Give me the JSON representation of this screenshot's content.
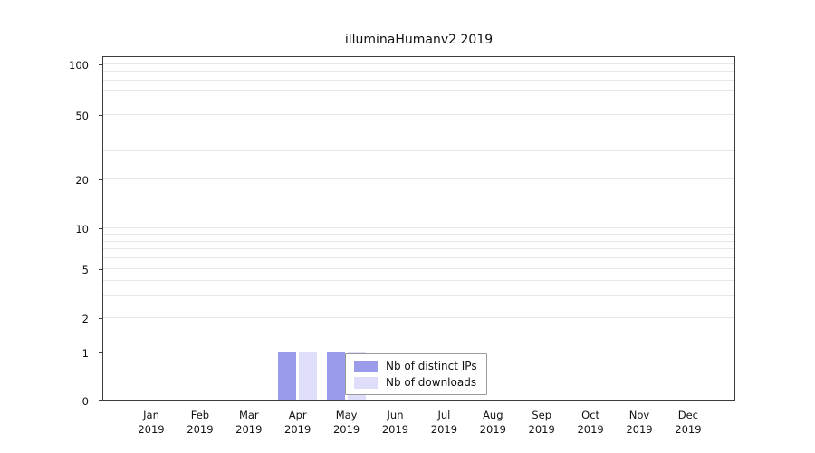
{
  "chart_data": {
    "type": "bar",
    "title": "illuminaHumanv2 2019",
    "categories": [
      "Jan 2019",
      "Feb 2019",
      "Mar 2019",
      "Apr 2019",
      "May 2019",
      "Jun 2019",
      "Jul 2019",
      "Aug 2019",
      "Sep 2019",
      "Oct 2019",
      "Nov 2019",
      "Dec 2019"
    ],
    "series": [
      {
        "name": "Nb of distinct IPs",
        "color": "#9b9bec",
        "values": [
          0,
          0,
          0,
          1,
          1,
          0,
          0,
          0,
          0,
          0,
          0,
          0
        ]
      },
      {
        "name": "Nb of downloads",
        "color": "#dedefb",
        "values": [
          0,
          0,
          0,
          1,
          1,
          0,
          0,
          0,
          0,
          0,
          0,
          0
        ]
      }
    ],
    "yticks": [
      0,
      1,
      2,
      5,
      10,
      20,
      50,
      100
    ],
    "ylim": [
      0,
      100
    ],
    "xlabel": "",
    "ylabel": "",
    "yscale": "log-like",
    "grid": "horizontal",
    "legend_position": "inside-bottom"
  }
}
